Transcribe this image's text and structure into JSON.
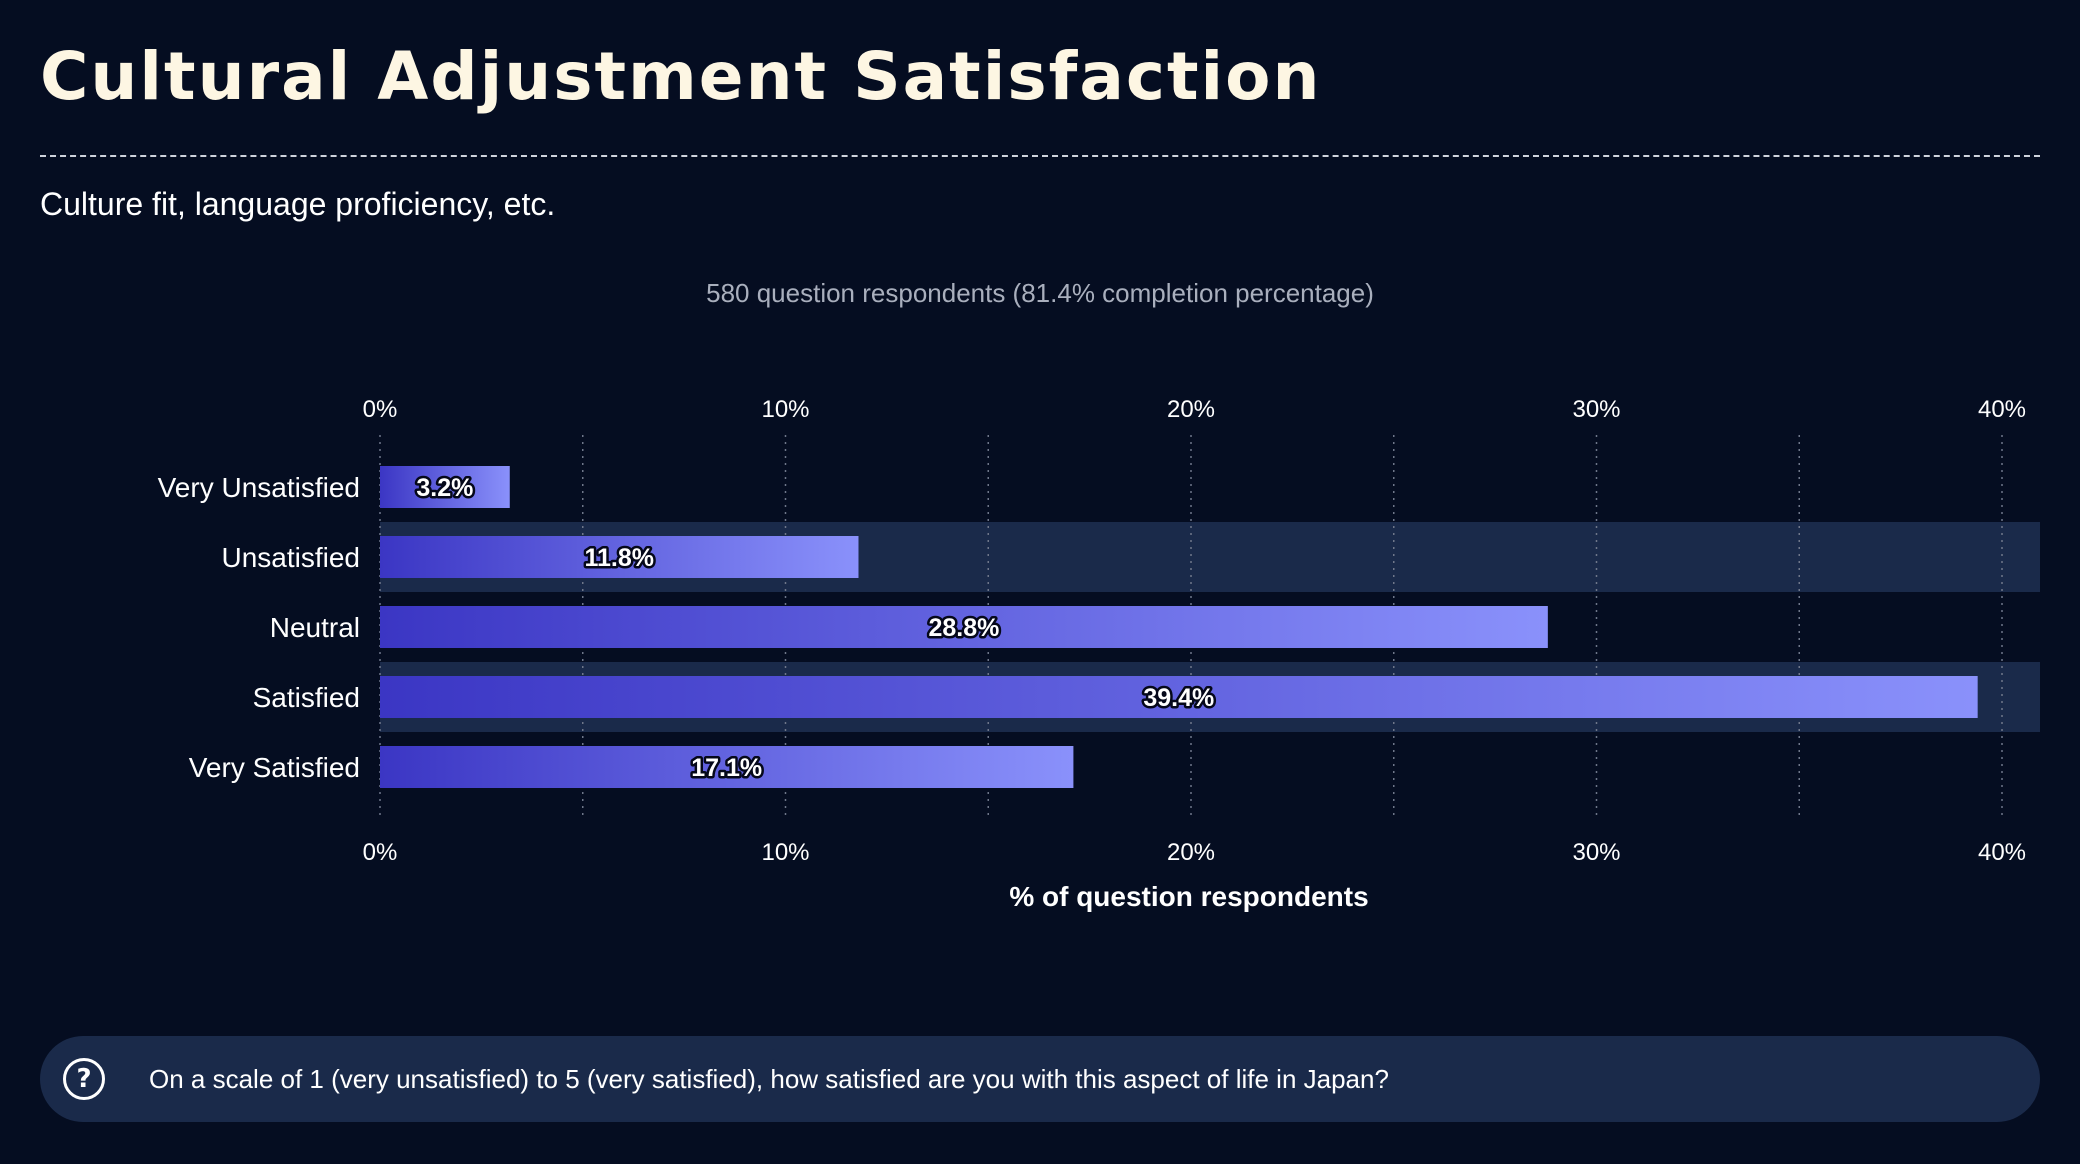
{
  "header": {
    "title": "Cultural Adjustment Satisfaction",
    "subtitle": "Culture fit, language proficiency, etc.",
    "respondents": "580 question respondents (81.4% completion percentage)"
  },
  "chart_data": {
    "type": "bar",
    "orientation": "horizontal",
    "categories": [
      "Very Unsatisfied",
      "Unsatisfied",
      "Neutral",
      "Satisfied",
      "Very Satisfied"
    ],
    "values": [
      3.2,
      11.8,
      28.8,
      39.4,
      17.1
    ],
    "value_labels": [
      "3.2%",
      "11.8%",
      "28.8%",
      "39.4%",
      "17.1%"
    ],
    "xlabel": "% of question respondents",
    "xlim": [
      0,
      41
    ],
    "xticks": [
      0,
      10,
      20,
      30,
      40
    ],
    "xtick_labels": [
      "0%",
      "10%",
      "20%",
      "30%",
      "40%"
    ],
    "tick_positions": [
      "top",
      "bottom"
    ],
    "grid": "vertical dotted",
    "colors": {
      "bar_start": "#3b36c4",
      "bar_end": "#8a91fb",
      "row_band": "#1a2a4a",
      "background": "#050d21"
    }
  },
  "question": {
    "icon": "question-circle-icon",
    "text": "On a scale of 1 (very unsatisfied) to 5 (very satisfied), how satisfied are you with this aspect of life in Japan?"
  }
}
